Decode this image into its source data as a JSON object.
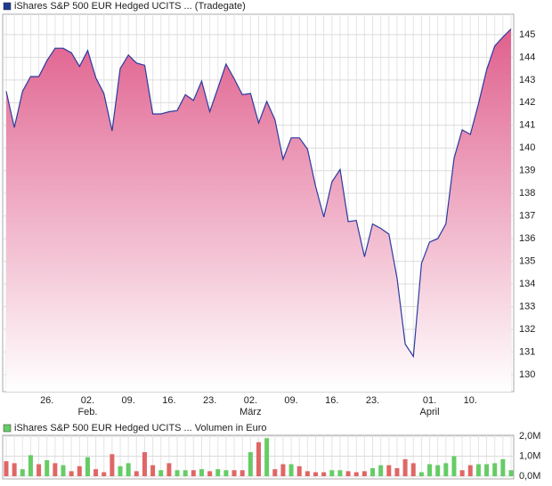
{
  "chart_data": [
    {
      "type": "area",
      "title": "iShares S&P 500 EUR Hedged UCITS ... (Tradegate)",
      "legend_color": "#1f3a93",
      "line_color": "#2b3aa0",
      "fill_color": "#e0608e",
      "grid": true,
      "categories": [
        null,
        null,
        null,
        null,
        null,
        "26.",
        null,
        null,
        null,
        null,
        "02.",
        null,
        null,
        null,
        null,
        "09.",
        null,
        null,
        null,
        null,
        "16.",
        null,
        null,
        null,
        null,
        "23.",
        null,
        null,
        null,
        null,
        "02.",
        null,
        null,
        null,
        null,
        "09.",
        null,
        null,
        null,
        null,
        "16.",
        null,
        null,
        null,
        null,
        "23.",
        null,
        null,
        null,
        null,
        null,
        null,
        "01.",
        null,
        null,
        null,
        null,
        "10.",
        null,
        null,
        null,
        null,
        null
      ],
      "month_labels": [
        null,
        null,
        null,
        null,
        null,
        null,
        null,
        null,
        null,
        null,
        "Feb.",
        null,
        null,
        null,
        null,
        null,
        null,
        null,
        null,
        null,
        null,
        null,
        null,
        null,
        null,
        null,
        null,
        null,
        null,
        null,
        "März",
        null,
        null,
        null,
        null,
        null,
        null,
        null,
        null,
        null,
        null,
        null,
        null,
        null,
        null,
        null,
        null,
        null,
        null,
        null,
        null,
        null,
        "April",
        null,
        null,
        null,
        null,
        null,
        null,
        null,
        null,
        null,
        null
      ],
      "values": [
        142.5,
        140.9,
        142.5,
        143.15,
        143.15,
        143.85,
        144.4,
        144.4,
        144.2,
        143.6,
        144.3,
        143.1,
        142.4,
        140.75,
        143.5,
        144.1,
        143.75,
        143.65,
        141.5,
        141.5,
        141.6,
        141.65,
        142.35,
        142.1,
        142.95,
        141.6,
        142.65,
        143.7,
        143.05,
        142.35,
        142.4,
        141.1,
        142.05,
        141.25,
        139.5,
        140.45,
        140.45,
        139.95,
        138.3,
        136.95,
        138.5,
        139.05,
        136.75,
        136.8,
        135.2,
        136.65,
        136.45,
        136.2,
        134.25,
        131.35,
        130.8,
        134.9,
        135.85,
        136.0,
        136.65,
        139.55,
        140.8,
        140.6,
        141.95,
        143.45,
        144.5,
        144.9,
        145.25
      ],
      "ylim": [
        129.25,
        145.9
      ],
      "yticks": [
        130,
        131,
        132,
        133,
        134,
        135,
        136,
        137,
        138,
        139,
        140,
        141,
        142,
        143,
        144,
        145
      ]
    },
    {
      "type": "bar",
      "title": "iShares S&P 500 EUR Hedged UCITS ... Volumen in Euro",
      "legend_color": "#66cc66",
      "grid": true,
      "values": [
        750000,
        650000,
        350000,
        1050000,
        600000,
        800000,
        650000,
        550000,
        250000,
        500000,
        950000,
        350000,
        200000,
        1100000,
        500000,
        650000,
        250000,
        1200000,
        550000,
        300000,
        650000,
        300000,
        300000,
        300000,
        350000,
        250000,
        350000,
        300000,
        300000,
        300000,
        1200000,
        1700000,
        1900000,
        350000,
        600000,
        600000,
        500000,
        250000,
        200000,
        200000,
        300000,
        300000,
        250000,
        200000,
        250000,
        400000,
        550000,
        550000,
        400000,
        850000,
        650000,
        200000,
        600000,
        550000,
        650000,
        1000000,
        300000,
        550000,
        600000,
        600000,
        650000,
        850000,
        300000
      ],
      "colors": [
        "#e06666",
        "#e06666",
        "#66cc66",
        "#66cc66",
        "#e06666",
        "#66cc66",
        "#e06666",
        "#66cc66",
        "#e06666",
        "#e06666",
        "#66cc66",
        "#e06666",
        "#e06666",
        "#e06666",
        "#66cc66",
        "#66cc66",
        "#e06666",
        "#e06666",
        "#e06666",
        "#66cc66",
        "#e06666",
        "#66cc66",
        "#66cc66",
        "#e06666",
        "#66cc66",
        "#e06666",
        "#66cc66",
        "#66cc66",
        "#e06666",
        "#e06666",
        "#66cc66",
        "#e06666",
        "#66cc66",
        "#e06666",
        "#e06666",
        "#66cc66",
        "#e06666",
        "#e06666",
        "#e06666",
        "#e06666",
        "#66cc66",
        "#66cc66",
        "#e06666",
        "#e06666",
        "#e06666",
        "#66cc66",
        "#66cc66",
        "#e06666",
        "#e06666",
        "#e06666",
        "#e06666",
        "#66cc66",
        "#66cc66",
        "#66cc66",
        "#66cc66",
        "#66cc66",
        "#e06666",
        "#e06666",
        "#66cc66",
        "#66cc66",
        "#66cc66",
        "#66cc66",
        "#66cc66"
      ],
      "ylim": [
        0,
        2000000
      ],
      "yticks": [
        {
          "value": 0,
          "label": "0,0M"
        },
        {
          "value": 1000000,
          "label": "1,0M"
        },
        {
          "value": 2000000,
          "label": "2,0M"
        }
      ]
    }
  ]
}
